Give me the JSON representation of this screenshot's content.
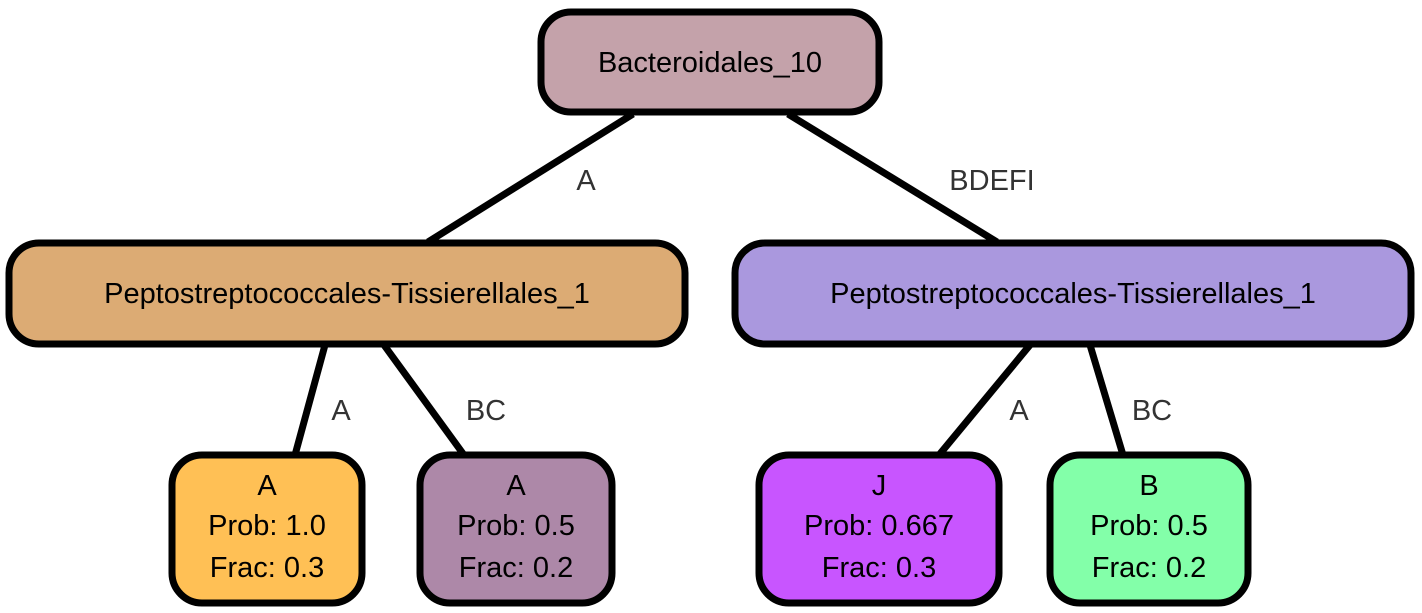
{
  "nodes": {
    "root": {
      "lines": [
        "Bacteroidales_10"
      ],
      "color": "#c4a2aa"
    },
    "left": {
      "lines": [
        "Peptostreptococcales-Tissierellales_1"
      ],
      "color": "#dcab74"
    },
    "right": {
      "lines": [
        "Peptostreptococcales-Tissierellales_1"
      ],
      "color": "#aa98de"
    },
    "leaf_a": {
      "lines": [
        "A",
        "Prob: 1.0",
        "Frac: 0.3"
      ],
      "color": "#ffc055"
    },
    "leaf_b": {
      "lines": [
        "A",
        "Prob: 0.5",
        "Frac: 0.2"
      ],
      "color": "#ad88a8"
    },
    "leaf_c": {
      "lines": [
        "J",
        "Prob: 0.667",
        "Frac: 0.3"
      ],
      "color": "#c855ff"
    },
    "leaf_d": {
      "lines": [
        "B",
        "Prob: 0.5",
        "Frac: 0.2"
      ],
      "color": "#83ffa9"
    }
  },
  "edges": [
    {
      "from": "root",
      "to": "left",
      "label": "A"
    },
    {
      "from": "root",
      "to": "right",
      "label": "BDEFI"
    },
    {
      "from": "left",
      "to": "leaf_a",
      "label": "A"
    },
    {
      "from": "left",
      "to": "leaf_b",
      "label": "BC"
    },
    {
      "from": "right",
      "to": "leaf_c",
      "label": "A"
    },
    {
      "from": "right",
      "to": "leaf_d",
      "label": "BC"
    }
  ]
}
